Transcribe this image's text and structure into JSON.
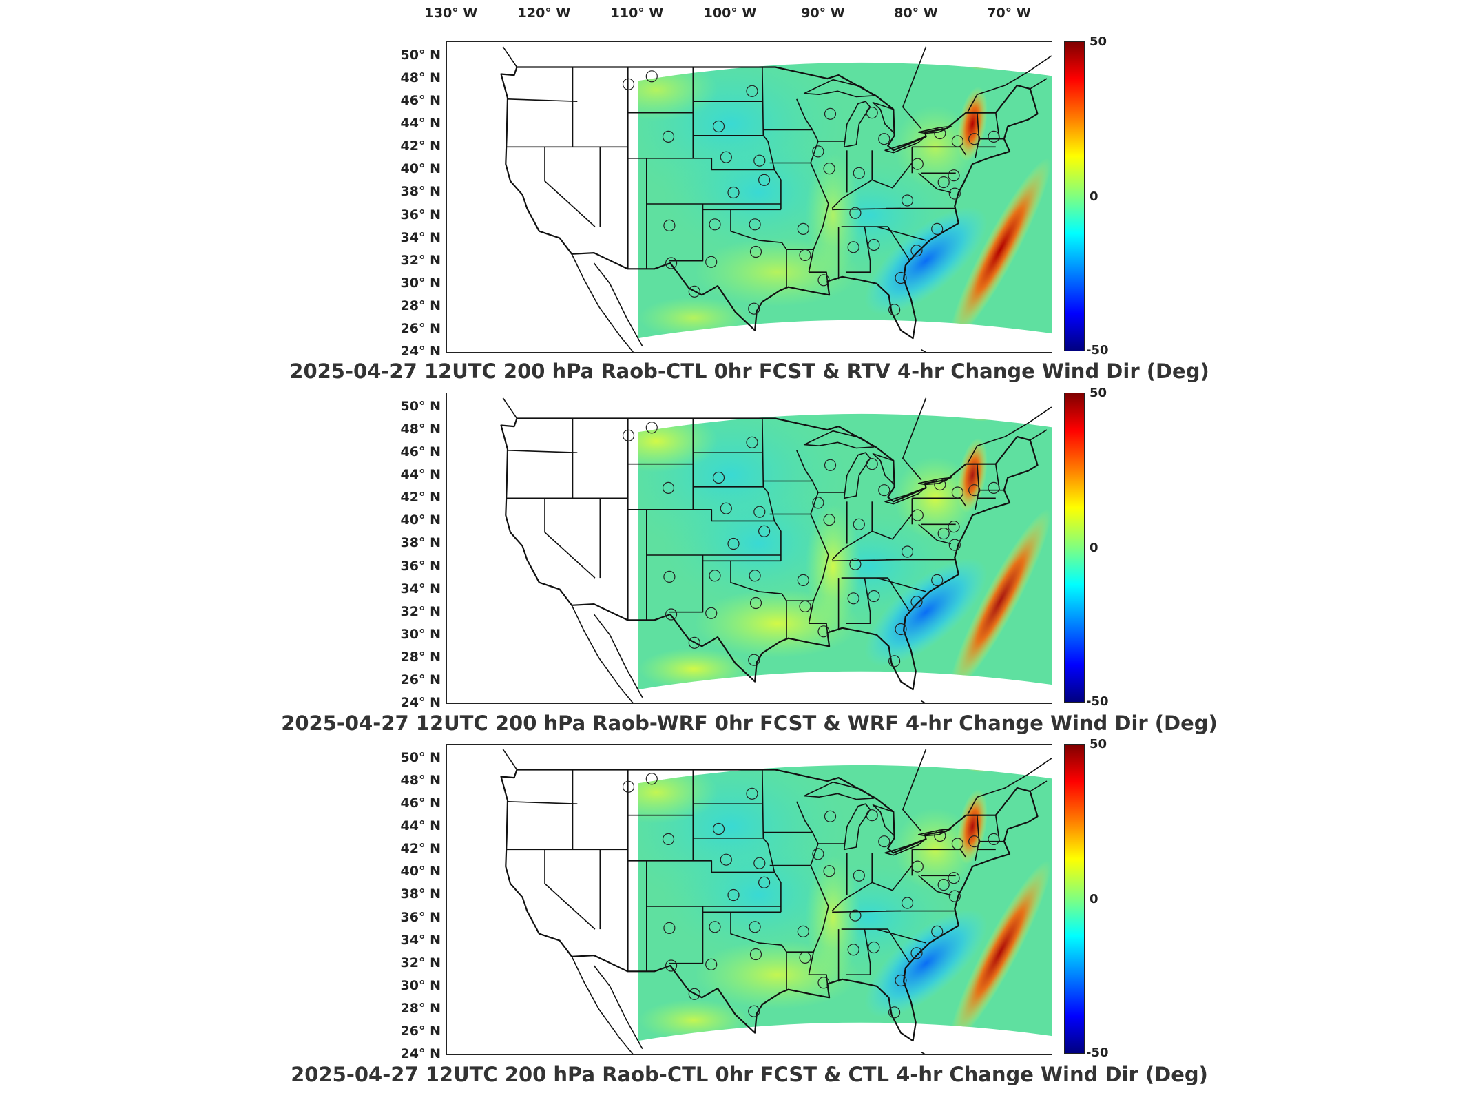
{
  "longitude_labels": [
    "130° W",
    "120° W",
    "110° W",
    "100° W",
    "90° W",
    "80° W",
    "70° W"
  ],
  "latitude_labels": [
    "50° N",
    "48° N",
    "46° N",
    "44° N",
    "42° N",
    "40° N",
    "38° N",
    "36° N",
    "34° N",
    "32° N",
    "30° N",
    "28° N",
    "26° N",
    "24° N"
  ],
  "colorbar": {
    "max": 50,
    "mid": 0,
    "min": -50,
    "max_label": "50",
    "mid_label": "0",
    "min_label": "-50",
    "colors": [
      "#7f0000",
      "#ff0000",
      "#ff8000",
      "#ffff00",
      "#80ff80",
      "#00ffff",
      "#0080ff",
      "#0000ff",
      "#00007f"
    ]
  },
  "map_colors": {
    "field_base": "#5fe0a0",
    "land_unshaded": "#ffffff",
    "borders": "#111111"
  },
  "panels": [
    {
      "title": "2025-04-27 12UTC 200 hPa Raob-CTL 0hr FCST & RTV 4-hr Change Wind Dir (Deg)"
    },
    {
      "title": "2025-04-27 12UTC 200 hPa Raob-WRF 0hr FCST & WRF 4-hr Change Wind Dir (Deg)"
    },
    {
      "title": "2025-04-27 12UTC 200 hPa Raob-CTL 0hr FCST & CTL 4-hr Change Wind Dir (Deg)"
    }
  ],
  "raob_stations": [
    [
      -111.0,
      47.5
    ],
    [
      -108.5,
      48.2
    ],
    [
      -97.7,
      46.9
    ],
    [
      -101.3,
      43.8
    ],
    [
      -106.7,
      42.9
    ],
    [
      -89.3,
      44.9
    ],
    [
      -84.8,
      45.0
    ],
    [
      -83.5,
      42.7
    ],
    [
      -75.6,
      42.5
    ],
    [
      -100.5,
      41.1
    ],
    [
      -89.4,
      40.1
    ],
    [
      -90.6,
      41.6
    ],
    [
      -96.4,
      39.1
    ],
    [
      -99.7,
      38.0
    ],
    [
      -86.2,
      39.7
    ],
    [
      -79.9,
      40.5
    ],
    [
      -77.1,
      38.9
    ],
    [
      -81.0,
      37.3
    ],
    [
      -75.9,
      37.9
    ],
    [
      -86.6,
      36.2
    ],
    [
      -106.6,
      35.1
    ],
    [
      -101.7,
      35.2
    ],
    [
      -97.4,
      35.2
    ],
    [
      -92.2,
      34.8
    ],
    [
      -84.6,
      33.4
    ],
    [
      -86.8,
      33.2
    ],
    [
      -80.0,
      32.9
    ],
    [
      -97.3,
      32.8
    ],
    [
      -102.1,
      31.9
    ],
    [
      -106.4,
      31.8
    ],
    [
      -92.0,
      32.5
    ],
    [
      -90.0,
      30.3
    ],
    [
      -81.7,
      30.5
    ],
    [
      -97.5,
      27.8
    ],
    [
      -82.4,
      27.7
    ],
    [
      -77.8,
      34.8
    ],
    [
      -77.5,
      43.2
    ],
    [
      -71.7,
      42.9
    ],
    [
      -73.8,
      42.7
    ],
    [
      -76.0,
      39.5
    ],
    [
      -103.9,
      29.3
    ],
    [
      -96.9,
      40.8
    ]
  ]
}
